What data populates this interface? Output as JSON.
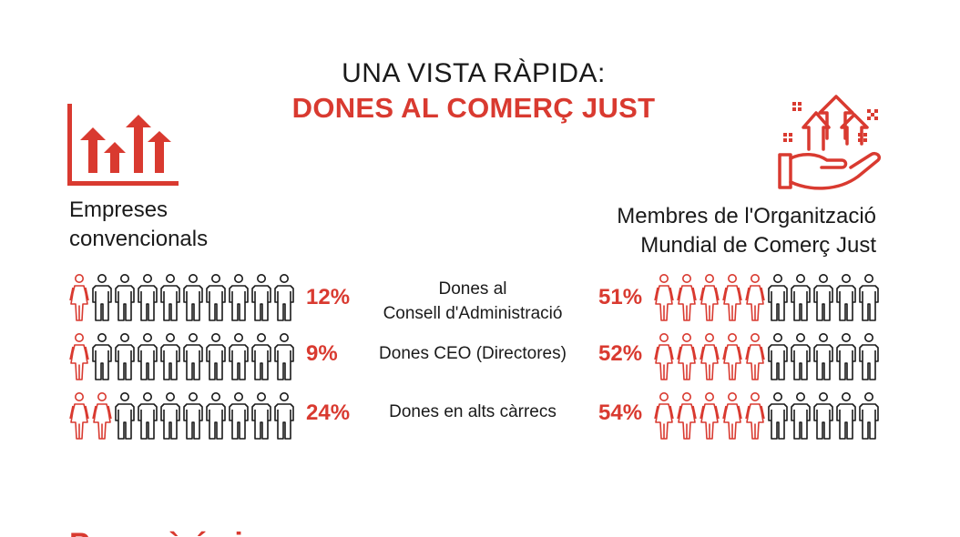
{
  "colors": {
    "accent": "#d93a30",
    "text": "#1a1a1a"
  },
  "header": {
    "title_line1": "UNA VISTA RÀPIDA:",
    "title_line2": "DONES AL COMERÇ JUST"
  },
  "groups": {
    "left": {
      "label_line1": "Empreses",
      "label_line2": "convencionals",
      "icon": "bar-chart-arrows-icon"
    },
    "right": {
      "label_line1": "Membres de l'Organització",
      "label_line2": "Mundial de Comerç Just",
      "icon": "hand-growth-arrows-icon"
    }
  },
  "chart_data": {
    "type": "table",
    "series": [
      {
        "name": "Empreses convencionals",
        "values": [
          12,
          9,
          24
        ]
      },
      {
        "name": "Membres de l'Organització Mundial de Comerç Just",
        "values": [
          51,
          52,
          54
        ]
      }
    ],
    "rows": [
      {
        "label_line1": "Dones al",
        "label_line2": "Consell d'Administració",
        "left_pct": "12%",
        "left_value": 12,
        "left_women_icons": 1,
        "right_pct": "51%",
        "right_value": 51,
        "right_women_icons": 5
      },
      {
        "label_line1": "Dones CEO (Directores)",
        "label_line2": "",
        "left_pct": "9%",
        "left_value": 9,
        "left_women_icons": 1,
        "right_pct": "52%",
        "right_value": 52,
        "right_women_icons": 5
      },
      {
        "label_line1": "Dones en alts càrrecs",
        "label_line2": "",
        "left_pct": "24%",
        "left_value": 24,
        "left_women_icons": 2,
        "right_pct": "54%",
        "right_value": 54,
        "right_women_icons": 5
      }
    ],
    "icons_per_row": 10
  },
  "footer": {
    "partial_heading": "Per què és i..."
  }
}
